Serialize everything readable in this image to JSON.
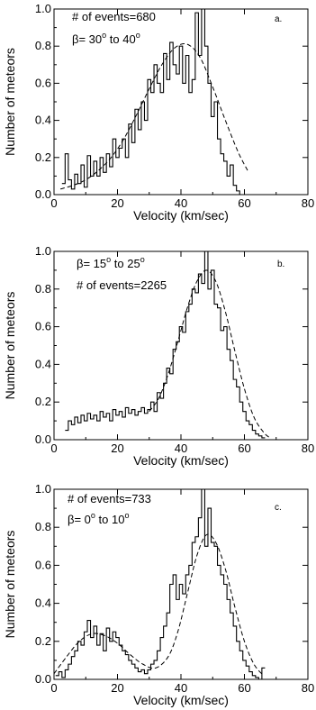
{
  "chart_data": [
    {
      "type": "line",
      "panel_label": "a.",
      "annotation_lines": [
        {
          "text": "# of events=680"
        },
        {
          "text": "β= 30",
          "sup1": "o",
          "mid": " to 40",
          "sup2": "o"
        }
      ],
      "xlabel": "Velocity (km/sec)",
      "ylabel": "Number of meteors",
      "xlim": [
        0,
        80
      ],
      "ylim": [
        0,
        1.0
      ],
      "xticks": [
        0,
        20,
        40,
        60,
        80
      ],
      "yticks": [
        0.0,
        0.2,
        0.4,
        0.6,
        0.8,
        1.0
      ],
      "ytick_labels": [
        "0.0",
        "0.2",
        "0.4",
        "0.6",
        "0.8",
        "1.0"
      ],
      "grid": false,
      "series": [
        {
          "style": "histogram-step",
          "x": [
            3,
            4,
            5,
            6,
            7,
            8,
            9,
            10,
            11,
            12,
            13,
            14,
            15,
            16,
            17,
            18,
            19,
            20,
            21,
            22,
            23,
            24,
            25,
            26,
            27,
            28,
            29,
            30,
            31,
            32,
            33,
            34,
            35,
            36,
            37,
            38,
            39,
            40,
            41,
            42,
            43,
            44,
            45,
            46,
            47,
            48,
            49,
            50,
            51,
            52,
            53,
            54,
            55,
            56,
            57,
            58,
            59,
            60,
            61
          ],
          "y": [
            0.06,
            0.22,
            0.08,
            0.03,
            0.11,
            0.06,
            0.16,
            0.04,
            0.21,
            0.1,
            0.18,
            0.1,
            0.2,
            0.12,
            0.22,
            0.15,
            0.3,
            0.2,
            0.25,
            0.3,
            0.2,
            0.38,
            0.28,
            0.46,
            0.35,
            0.5,
            0.4,
            0.62,
            0.55,
            0.7,
            0.6,
            0.55,
            0.76,
            0.62,
            0.82,
            0.7,
            0.65,
            0.8,
            0.6,
            0.75,
            0.55,
            0.62,
            0.98,
            0.75,
            1.0,
            0.8,
            0.6,
            0.42,
            0.5,
            0.3,
            0.22,
            0.18,
            0.1,
            0.16,
            0.05,
            0.02,
            0.0,
            0.0,
            0.0
          ]
        },
        {
          "style": "dashed-fit",
          "x": [
            2,
            6,
            10,
            14,
            18,
            22,
            26,
            30,
            34,
            38,
            42,
            46,
            50,
            54,
            58,
            61
          ],
          "y": [
            0.03,
            0.05,
            0.08,
            0.13,
            0.2,
            0.3,
            0.43,
            0.57,
            0.7,
            0.79,
            0.81,
            0.74,
            0.58,
            0.4,
            0.23,
            0.13
          ]
        }
      ]
    },
    {
      "type": "line",
      "panel_label": "b.",
      "annotation_lines": [
        {
          "text": "β= 15",
          "sup1": "o",
          "mid": " to 25",
          "sup2": "o"
        },
        {
          "text": "# of events=2265"
        }
      ],
      "xlabel": "Velocity (km/sec)",
      "ylabel": "Number of meteors",
      "xlim": [
        0,
        80
      ],
      "ylim": [
        0,
        1.0
      ],
      "xticks": [
        0,
        20,
        40,
        60,
        80
      ],
      "yticks": [
        0.0,
        0.2,
        0.4,
        0.6,
        0.8,
        1.0
      ],
      "ytick_labels": [
        "0.0",
        "0.2",
        "0.4",
        "0.6",
        "0.8",
        "1.0"
      ],
      "grid": false,
      "series": [
        {
          "style": "histogram-step",
          "x": [
            4,
            5,
            6,
            7,
            8,
            9,
            10,
            11,
            12,
            13,
            14,
            15,
            16,
            17,
            18,
            19,
            20,
            21,
            22,
            23,
            24,
            25,
            26,
            27,
            28,
            29,
            30,
            31,
            32,
            33,
            34,
            35,
            36,
            37,
            38,
            39,
            40,
            41,
            42,
            43,
            44,
            45,
            46,
            47,
            48,
            49,
            50,
            51,
            52,
            53,
            54,
            55,
            56,
            57,
            58,
            59,
            60,
            61,
            62,
            63,
            64,
            65,
            66
          ],
          "y": [
            0.05,
            0.1,
            0.08,
            0.12,
            0.09,
            0.13,
            0.1,
            0.14,
            0.11,
            0.13,
            0.1,
            0.15,
            0.12,
            0.14,
            0.1,
            0.16,
            0.13,
            0.15,
            0.12,
            0.17,
            0.14,
            0.16,
            0.13,
            0.15,
            0.17,
            0.14,
            0.16,
            0.2,
            0.15,
            0.25,
            0.22,
            0.3,
            0.38,
            0.35,
            0.48,
            0.52,
            0.6,
            0.57,
            0.68,
            0.72,
            0.8,
            0.78,
            0.88,
            0.83,
            1.0,
            0.8,
            0.9,
            0.72,
            0.7,
            0.58,
            0.6,
            0.48,
            0.42,
            0.32,
            0.28,
            0.2,
            0.15,
            0.1,
            0.08,
            0.05,
            0.03,
            0.02,
            0.01
          ]
        },
        {
          "style": "dashed-fit",
          "x": [
            30,
            33,
            36,
            39,
            42,
            45,
            48,
            51,
            54,
            57,
            60,
            63,
            66,
            68
          ],
          "y": [
            0.15,
            0.22,
            0.35,
            0.52,
            0.7,
            0.84,
            0.9,
            0.84,
            0.68,
            0.47,
            0.27,
            0.12,
            0.04,
            0.01
          ]
        }
      ]
    },
    {
      "type": "line",
      "panel_label": "c.",
      "annotation_lines": [
        {
          "text": "# of events=733"
        },
        {
          "text": "β= 0",
          "sup1": "o",
          "mid": " to 10",
          "sup2": "o"
        }
      ],
      "xlabel": "Velocity (km/sec)",
      "ylabel": "Number of meteors",
      "xlim": [
        0,
        80
      ],
      "ylim": [
        0,
        1.0
      ],
      "xticks": [
        0,
        20,
        40,
        60,
        80
      ],
      "yticks": [
        0.0,
        0.2,
        0.4,
        0.6,
        0.8,
        1.0
      ],
      "ytick_labels": [
        "0.0",
        "0.2",
        "0.4",
        "0.6",
        "0.8",
        "1.0"
      ],
      "grid": false,
      "series": [
        {
          "style": "histogram-step",
          "x": [
            1,
            2,
            3,
            4,
            5,
            6,
            7,
            8,
            9,
            10,
            11,
            12,
            13,
            14,
            15,
            16,
            17,
            18,
            19,
            20,
            21,
            22,
            23,
            24,
            25,
            26,
            27,
            28,
            29,
            30,
            31,
            32,
            33,
            34,
            35,
            36,
            37,
            38,
            39,
            40,
            41,
            42,
            43,
            44,
            45,
            46,
            47,
            48,
            49,
            50,
            51,
            52,
            53,
            54,
            55,
            56,
            57,
            58,
            59,
            60,
            61,
            62,
            63,
            64,
            65,
            66
          ],
          "y": [
            0.02,
            0.04,
            0.01,
            0.05,
            0.08,
            0.12,
            0.15,
            0.2,
            0.18,
            0.25,
            0.31,
            0.22,
            0.28,
            0.18,
            0.24,
            0.15,
            0.27,
            0.2,
            0.25,
            0.22,
            0.18,
            0.15,
            0.13,
            0.1,
            0.08,
            0.06,
            0.04,
            0.05,
            0.03,
            0.05,
            0.08,
            0.1,
            0.15,
            0.22,
            0.28,
            0.35,
            0.5,
            0.55,
            0.42,
            0.5,
            0.45,
            0.55,
            0.6,
            0.72,
            0.75,
            0.85,
            1.0,
            0.7,
            0.9,
            0.72,
            0.7,
            0.6,
            0.55,
            0.5,
            0.42,
            0.35,
            0.28,
            0.2,
            0.15,
            0.1,
            0.07,
            0.04,
            0.02,
            0.01,
            0.0,
            0.06
          ]
        },
        {
          "style": "dashed-fit",
          "x": [
            0,
            4,
            8,
            12,
            16,
            20,
            24,
            28,
            32,
            36,
            39,
            42,
            45,
            48,
            51,
            54,
            57,
            60,
            63,
            66
          ],
          "y": [
            0.03,
            0.12,
            0.2,
            0.24,
            0.23,
            0.19,
            0.13,
            0.08,
            0.06,
            0.12,
            0.25,
            0.45,
            0.65,
            0.76,
            0.72,
            0.58,
            0.38,
            0.2,
            0.08,
            0.02
          ]
        }
      ]
    }
  ]
}
